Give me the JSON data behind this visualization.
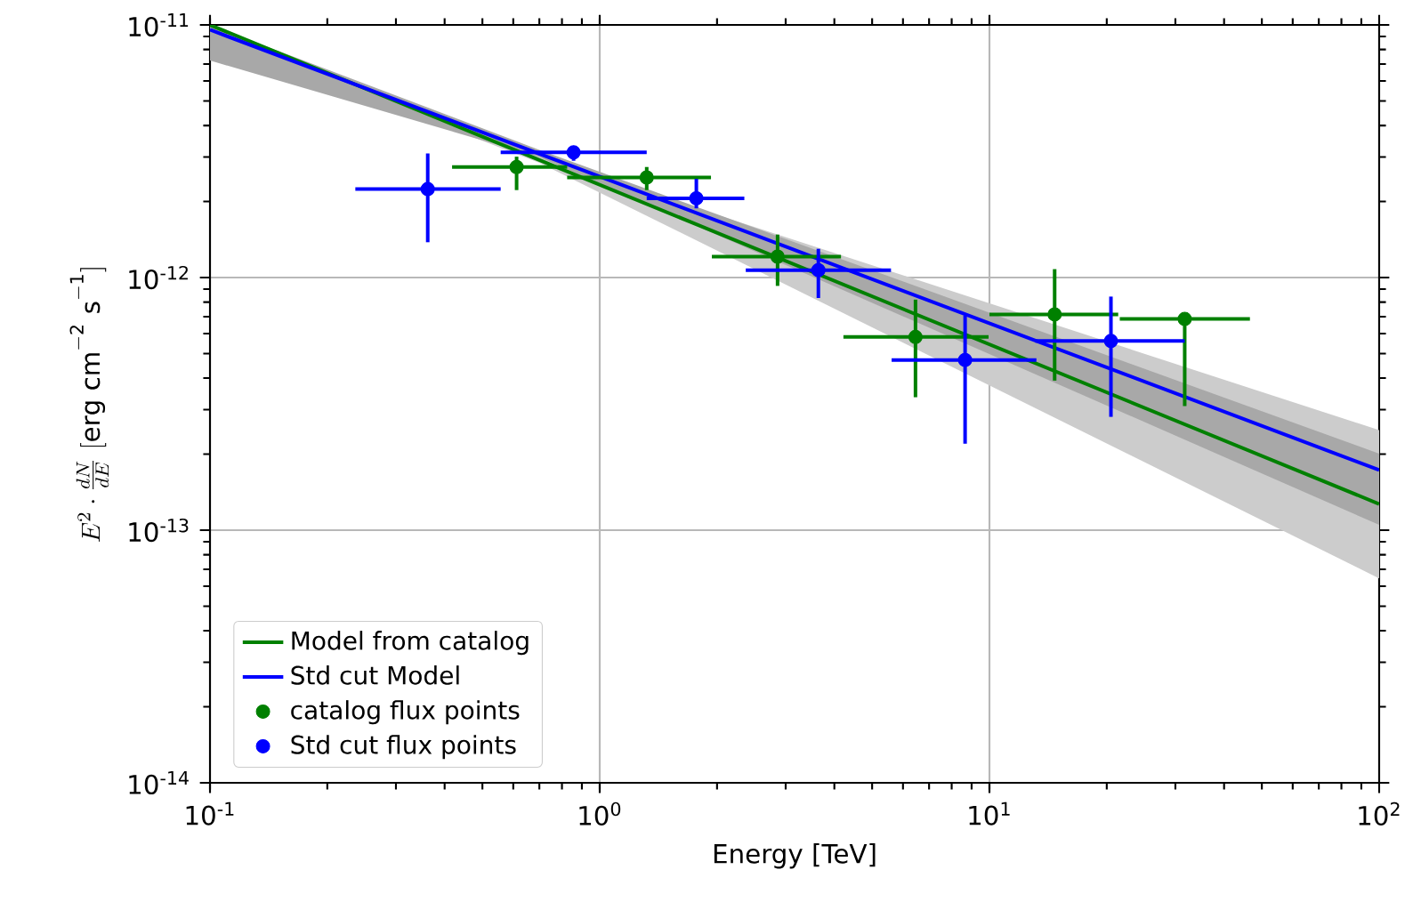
{
  "chart_data": {
    "type": "line",
    "xlabel": "Energy [TeV]",
    "ylabel": "E^2 \\cdot \\frac{dN}{dE}\\ [\\mathrm{erg\\ cm^{-2}\\ s^{-1}}]",
    "log": "xy",
    "grid": true,
    "legend": "bottom left",
    "xlim": [
      0.1,
      100
    ],
    "ylim": [
      1e-14,
      1e-11
    ],
    "xticks": [
      {
        "value": 0.1,
        "label": "10$^{-1}$"
      },
      {
        "value": 1,
        "label": "10$^{0}$"
      },
      {
        "value": 10,
        "label": "10$^{1}$"
      },
      {
        "value": 100,
        "label": "10$^{2}$"
      }
    ],
    "yticks": [
      {
        "value": 1e-14,
        "label": "10$^{-14}$"
      },
      {
        "value": 1e-13,
        "label": "10$^{-13}$"
      },
      {
        "value": 1e-12,
        "label": "10$^{-12}$"
      },
      {
        "value": 1e-11,
        "label": "10$^{-11}$"
      }
    ],
    "series": [
      {
        "name": "Model from catalog",
        "color": "#008000",
        "marker": "none",
        "x": [
          0.1,
          0.7,
          100
        ],
        "values": [
          1e-11,
          2.92e-12,
          1.27e-13
        ],
        "lower": [
          9.07e-12,
          2.85e-12,
          6.45e-14
        ],
        "upper": [
          1e-11,
          3e-12,
          2.49e-13
        ]
      },
      {
        "name": "Std cut Model",
        "color": "#0000ff",
        "marker": "none",
        "x": [
          0.1,
          0.7,
          100
        ],
        "values": [
          9.57e-12,
          3.09e-12,
          1.73e-13
        ],
        "lower": [
          7.23e-12,
          3e-12,
          1.05e-13
        ],
        "upper": [
          1e-11,
          3.2e-12,
          2.01e-13
        ]
      },
      {
        "type": "scatter",
        "name": "catalog flux points",
        "color": "#008000",
        "marker": "circle",
        "x": [
          0.612,
          1.32,
          2.86,
          6.46,
          14.7,
          31.7
        ],
        "values": [
          2.74e-12,
          2.49e-12,
          1.21e-12,
          5.82e-13,
          7.15e-13,
          6.86e-13
        ],
        "xerrors": [
          [
            0.418,
            0.825
          ],
          [
            0.825,
            1.93
          ],
          [
            1.94,
            4.16
          ],
          [
            4.22,
            9.95
          ],
          [
            10.0,
            21.4
          ],
          [
            21.6,
            46.6
          ]
        ],
        "errors": [
          [
            2.22e-12,
            3.01e-12
          ],
          [
            2.22e-12,
            2.74e-12
          ],
          [
            9.27e-13,
            1.48e-12
          ],
          [
            3.36e-13,
            8.18e-13
          ],
          [
            3.91e-13,
            1.08e-12
          ],
          [
            3.1e-13,
            6.86e-13
          ]
        ]
      },
      {
        "type": "scatter",
        "name": "Std cut flux points",
        "color": "#0000ff",
        "marker": "circle",
        "x": [
          0.362,
          0.857,
          1.77,
          3.64,
          8.66,
          20.5
        ],
        "values": [
          2.24e-12,
          3.13e-12,
          2.06e-12,
          1.07e-12,
          4.72e-13,
          5.61e-13
        ],
        "xerrors": [
          [
            0.236,
            0.557
          ],
          [
            0.557,
            1.32
          ],
          [
            1.32,
            2.35
          ],
          [
            2.37,
            5.59
          ],
          [
            5.61,
            13.2
          ],
          [
            13.1,
            31.7
          ]
        ],
        "errors": [
          [
            1.38e-12,
            3.1e-12
          ],
          [
            2.9e-12,
            3.3e-12
          ],
          [
            1.88e-12,
            2.46e-12
          ],
          [
            8.3e-13,
            1.3e-12
          ],
          [
            2.2e-13,
            7.08e-13
          ],
          [
            2.81e-13,
            8.41e-13
          ]
        ]
      }
    ]
  }
}
